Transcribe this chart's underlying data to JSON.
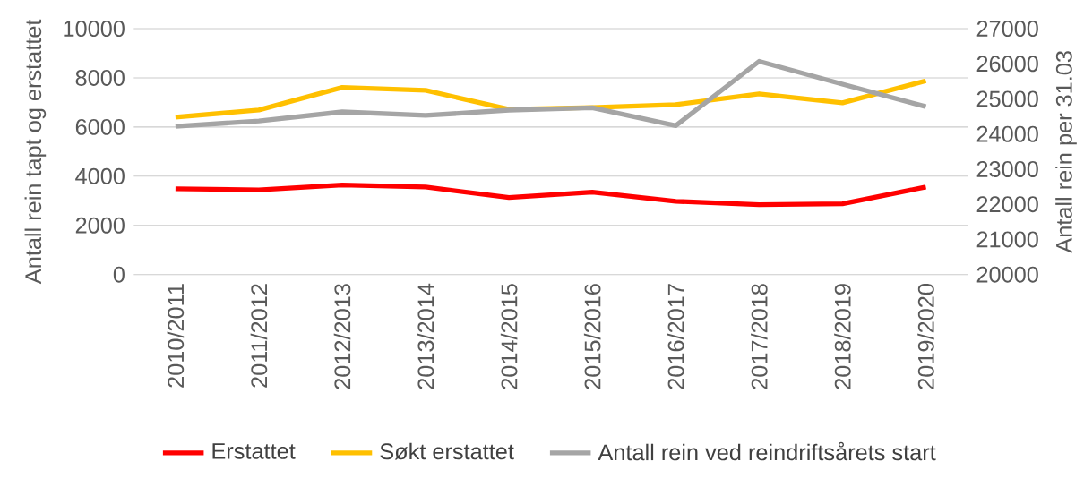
{
  "chart_data": {
    "type": "line",
    "ylabel": "Antall rein tapt og erstattet",
    "y2label": "Antall rein per 31.03",
    "categories": [
      "2010/2011",
      "2011/2012",
      "2012/2013",
      "2013/2014",
      "2014/2015",
      "2015/2016",
      "2016/2017",
      "2017/2018",
      "2018/2019",
      "2019/2020"
    ],
    "series": [
      {
        "name": "Erstattet",
        "color": "#ff0000",
        "values": [
          3490,
          3440,
          3640,
          3560,
          3130,
          3350,
          2980,
          2840,
          2880,
          3560
        ]
      },
      {
        "name": "Søkt erstattet",
        "color": "#ffc000",
        "values": [
          6400,
          6690,
          7610,
          7490,
          6720,
          6790,
          6910,
          7350,
          6980,
          7880
        ]
      },
      {
        "name": "Antall rein ved reindriftsårets start",
        "color": "#a5a5a5",
        "axis": "y2",
        "values": [
          24220,
          24370,
          24630,
          24530,
          24680,
          24750,
          24240,
          26070,
          25420,
          24780
        ]
      }
    ],
    "ylim": [
      0,
      10000
    ],
    "yticks": [
      0,
      2000,
      4000,
      6000,
      8000,
      10000
    ],
    "y2lim": [
      20000,
      27000
    ],
    "y2ticks": [
      20000,
      21000,
      22000,
      23000,
      24000,
      25000,
      26000,
      27000
    ],
    "grid": "y",
    "legend": "bottom",
    "marker": "none",
    "line_style": "solid"
  }
}
